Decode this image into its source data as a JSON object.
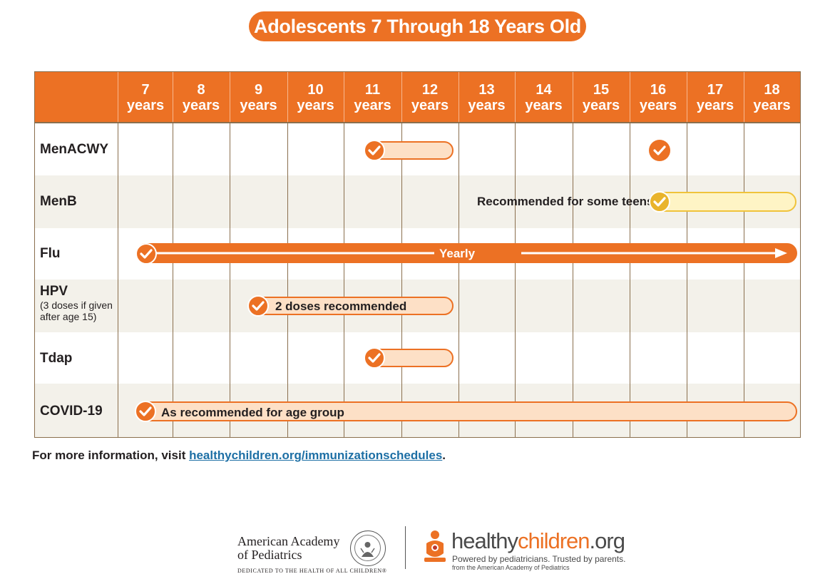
{
  "title": "Adolescents 7 Through 18 Years Old",
  "columns": [
    {
      "num": "7",
      "unit": "years"
    },
    {
      "num": "8",
      "unit": "years"
    },
    {
      "num": "9",
      "unit": "years"
    },
    {
      "num": "10",
      "unit": "years"
    },
    {
      "num": "11",
      "unit": "years"
    },
    {
      "num": "12",
      "unit": "years"
    },
    {
      "num": "13",
      "unit": "years"
    },
    {
      "num": "14",
      "unit": "years"
    },
    {
      "num": "15",
      "unit": "years"
    },
    {
      "num": "16",
      "unit": "years"
    },
    {
      "num": "17",
      "unit": "years"
    },
    {
      "num": "18",
      "unit": "years"
    }
  ],
  "rows": [
    {
      "label": "MenACWY",
      "note": ""
    },
    {
      "label": "MenB",
      "note": ""
    },
    {
      "label": "Flu",
      "note": ""
    },
    {
      "label": "HPV",
      "note": "(3 doses if given after age 15)"
    },
    {
      "label": "Tdap",
      "note": ""
    },
    {
      "label": "COVID-19",
      "note": ""
    }
  ],
  "bar_labels": {
    "menb": "Recommended for some teens",
    "flu": "Yearly",
    "hpv": "2 doses recommended",
    "covid": "As recommended for age group"
  },
  "colors": {
    "accent": "#ec7124",
    "peach": "#fde0c6",
    "yellow": "#fef4c5",
    "yellow_check": "#e9b42c",
    "link": "#1d6fa5"
  },
  "footer": {
    "prefix": "For more information, visit ",
    "link": "healthychildren.org/immunizationschedules",
    "suffix": "."
  },
  "aap": {
    "line1": "American Academy",
    "line2": "of Pediatrics",
    "tagline": "DEDICATED TO THE HEALTH OF ALL CHILDREN®"
  },
  "hc": {
    "name_a": "healthy",
    "name_b": "children",
    "name_c": ".org",
    "sub": "Powered by pediatricians. Trusted by parents.",
    "sub2": "from the American Academy of Pediatrics"
  }
}
